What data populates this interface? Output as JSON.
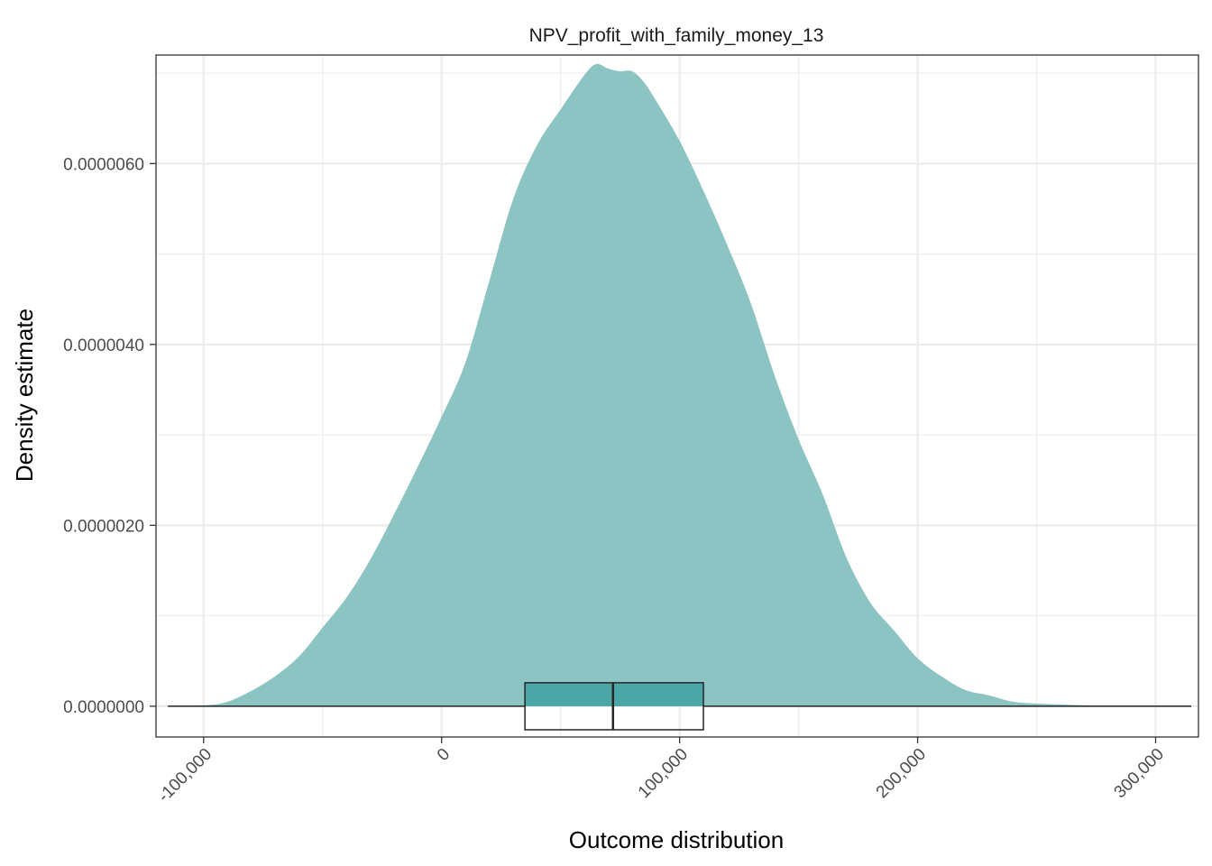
{
  "chart_data": {
    "type": "area",
    "title": "NPV_profit_with_family_money_13",
    "xlabel": "Outcome distribution",
    "ylabel": "Density estimate",
    "xlim": [
      -120000,
      318000
    ],
    "ylim": [
      -3.4e-07,
      7.2e-06
    ],
    "x_ticks": [
      -100000,
      0,
      100000,
      200000,
      300000
    ],
    "x_tick_labels": [
      "-100,000",
      "0",
      "100,000",
      "200,000",
      "300,000"
    ],
    "y_ticks": [
      0,
      2e-06,
      4e-06,
      6e-06
    ],
    "y_tick_labels": [
      "0.0000000",
      "0.0000020",
      "0.0000040",
      "0.0000060"
    ],
    "grid": true,
    "legend": "none",
    "colors": {
      "density_fill": "#8cc3c3",
      "box_fill": "#4da6a6",
      "box_stroke": "#262626",
      "grid": "#ebebeb",
      "panel_border": "#333333"
    },
    "density": {
      "x": [
        -120000,
        -100000,
        -90000,
        -80000,
        -70000,
        -60000,
        -50000,
        -40000,
        -30000,
        -20000,
        -10000,
        0,
        10000,
        20000,
        30000,
        40000,
        50000,
        60000,
        65000,
        70000,
        75000,
        80000,
        85000,
        90000,
        100000,
        110000,
        120000,
        130000,
        140000,
        150000,
        160000,
        170000,
        180000,
        190000,
        200000,
        210000,
        220000,
        230000,
        240000,
        250000,
        260000,
        270000,
        280000,
        300000,
        318000
      ],
      "y": [
        0,
        1e-08,
        5e-08,
        1.7e-07,
        3.3e-07,
        5.5e-07,
        8.7e-07,
        1.2e-06,
        1.62e-06,
        2.12e-06,
        2.65e-06,
        3.2e-06,
        3.8e-06,
        4.7e-06,
        5.6e-06,
        6.2e-06,
        6.6e-06,
        6.98e-06,
        7.1e-06,
        7.05e-06,
        7.02e-06,
        7.02e-06,
        6.9e-06,
        6.7e-06,
        6.25e-06,
        5.7e-06,
        5.1e-06,
        4.45e-06,
        3.65e-06,
        2.95e-06,
        2.35e-06,
        1.65e-06,
        1.15e-06,
        8.4e-07,
        5.3e-07,
        3.3e-07,
        1.8e-07,
        1.2e-07,
        5e-08,
        3e-08,
        2e-08,
        1e-08,
        0,
        0,
        0
      ]
    },
    "boxplot": {
      "whisker_low": -115000,
      "q1": 35000,
      "median": 72000,
      "q3": 110000,
      "whisker_high": 315000,
      "box_y_bottom": -2.6e-07,
      "box_y_top": 2.6e-07
    }
  }
}
